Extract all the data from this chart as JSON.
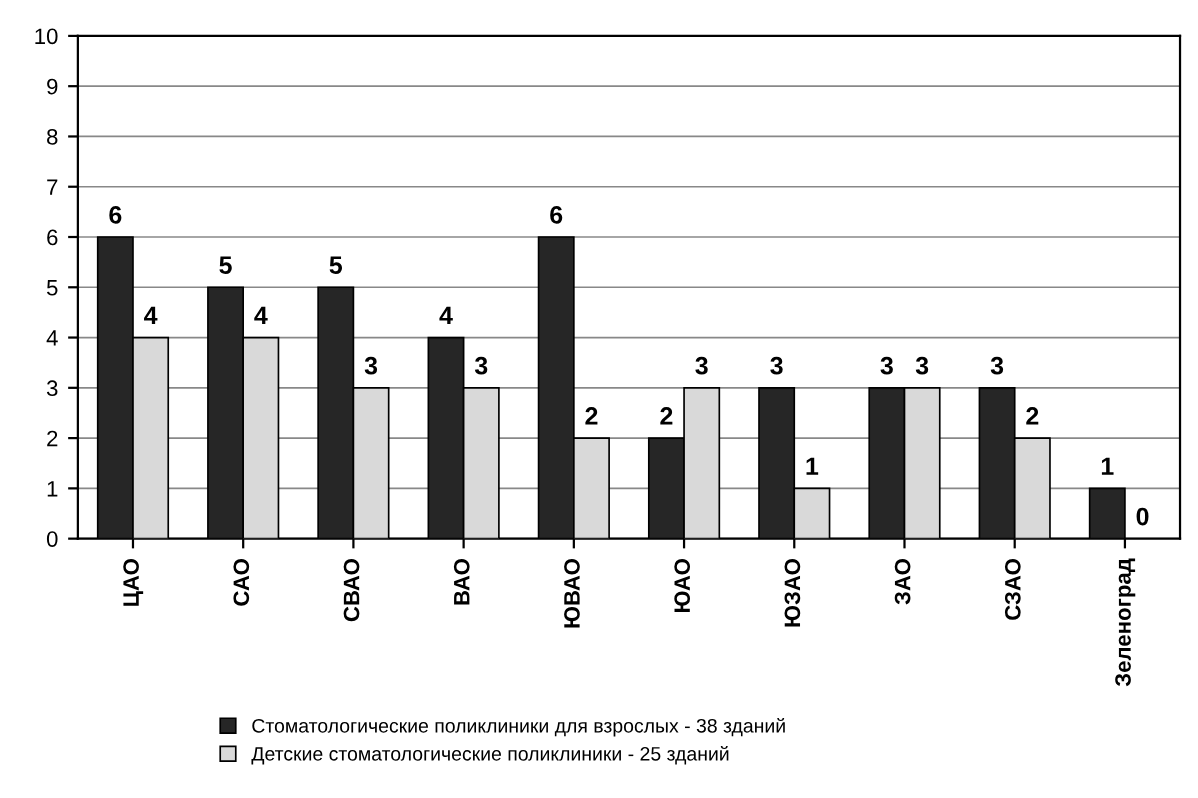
{
  "chart_data": {
    "type": "bar",
    "categories": [
      "ЦАО",
      "САО",
      "СВАО",
      "ВАО",
      "ЮВАО",
      "ЮАО",
      "ЮЗАО",
      "ЗАО",
      "СЗАО",
      "Зеленоград"
    ],
    "series": [
      {
        "name": "Стоматологические поликлиники для взрослых - 38 зданий",
        "color": "#262626",
        "values": [
          6,
          5,
          5,
          4,
          6,
          2,
          3,
          3,
          3,
          1
        ]
      },
      {
        "name": "Детские стоматологические поликлиники - 25 зданий",
        "color": "#d9d9d9",
        "values": [
          4,
          4,
          3,
          3,
          2,
          3,
          1,
          3,
          2,
          0
        ]
      }
    ],
    "ylim": [
      0,
      10
    ],
    "yticks": [
      0,
      1,
      2,
      3,
      4,
      5,
      6,
      7,
      8,
      9,
      10
    ],
    "grid": "y",
    "legend": "bottom",
    "data_labels": true
  }
}
